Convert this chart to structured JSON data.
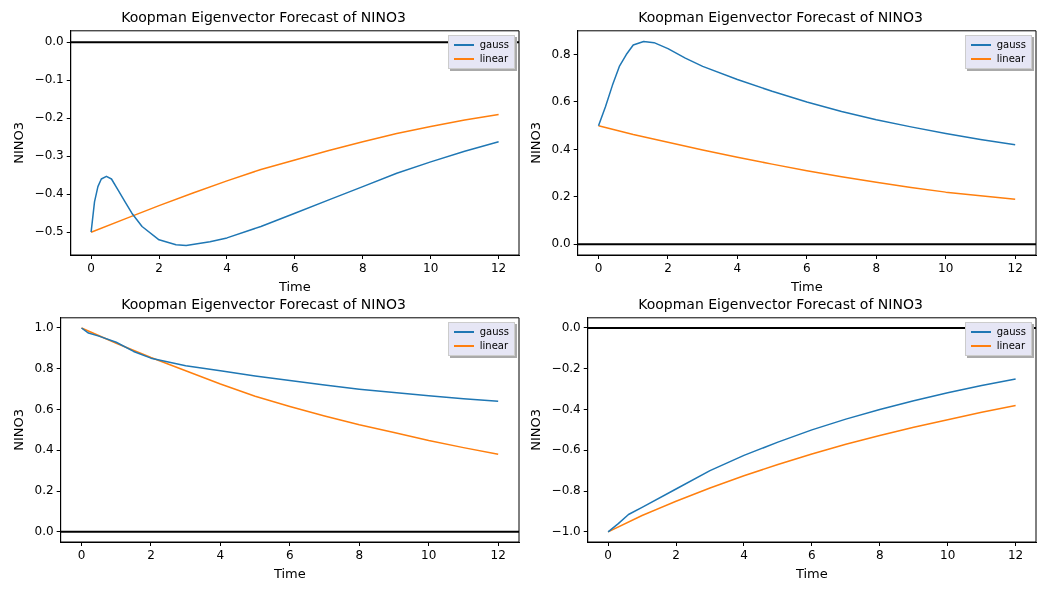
{
  "chart_data": [
    {
      "type": "line",
      "title": "Koopman Eigenvector Forecast of NINO3",
      "xlabel": "Time",
      "ylabel": "NINO3",
      "legend": "top right",
      "grid": false,
      "xlim": [
        -0.6,
        12.6
      ],
      "ylim": [
        -0.56,
        0.03
      ],
      "xticks": [
        0,
        2,
        4,
        6,
        8,
        10,
        12
      ],
      "yticks": [
        {
          "value": 0,
          "label": "0.0"
        },
        {
          "value": -0.1,
          "label": "−0.1"
        },
        {
          "value": -0.2,
          "label": "−0.2"
        },
        {
          "value": -0.3,
          "label": "−0.3"
        },
        {
          "value": -0.4,
          "label": "−0.4"
        },
        {
          "value": -0.5,
          "label": "−0.5"
        }
      ],
      "ref_lines": [
        {
          "axis": "y",
          "value": 0,
          "color": "#000000"
        }
      ],
      "series": [
        {
          "name": "gauss",
          "color": "#1f77b4",
          "x": [
            0,
            0.1,
            0.2,
            0.3,
            0.45,
            0.6,
            0.8,
            1,
            1.2,
            1.5,
            2,
            2.5,
            2.8,
            3.5,
            4,
            5,
            6,
            7,
            8,
            9,
            10,
            11,
            12
          ],
          "values": [
            -0.5,
            -0.42,
            -0.38,
            -0.36,
            -0.353,
            -0.36,
            -0.39,
            -0.42,
            -0.45,
            -0.485,
            -0.52,
            -0.533,
            -0.535,
            -0.525,
            -0.515,
            -0.485,
            -0.45,
            -0.415,
            -0.38,
            -0.345,
            -0.315,
            -0.287,
            -0.262
          ]
        },
        {
          "name": "linear",
          "color": "#ff7f0e",
          "x": [
            0,
            1,
            2,
            3,
            4,
            5,
            6,
            7,
            8,
            9,
            10,
            11,
            12
          ],
          "values": [
            -0.5,
            -0.465,
            -0.43,
            -0.397,
            -0.365,
            -0.335,
            -0.31,
            -0.285,
            -0.262,
            -0.24,
            -0.222,
            -0.205,
            -0.19
          ]
        }
      ]
    },
    {
      "type": "line",
      "title": "Koopman Eigenvector Forecast of NINO3",
      "xlabel": "Time",
      "ylabel": "NINO3",
      "legend": "top right",
      "grid": false,
      "xlim": [
        -0.6,
        12.6
      ],
      "ylim": [
        -0.045,
        0.9
      ],
      "xticks": [
        0,
        2,
        4,
        6,
        8,
        10,
        12
      ],
      "yticks": [
        {
          "value": 0,
          "label": "0.0"
        },
        {
          "value": 0.2,
          "label": "0.2"
        },
        {
          "value": 0.4,
          "label": "0.4"
        },
        {
          "value": 0.6,
          "label": "0.6"
        },
        {
          "value": 0.8,
          "label": "0.8"
        }
      ],
      "ref_lines": [
        {
          "axis": "y",
          "value": 0,
          "color": "#000000"
        }
      ],
      "series": [
        {
          "name": "gauss",
          "color": "#1f77b4",
          "x": [
            0,
            0.2,
            0.4,
            0.6,
            0.8,
            1,
            1.3,
            1.6,
            2,
            2.5,
            3,
            4,
            5,
            6,
            7,
            8,
            9,
            10,
            11,
            12
          ],
          "values": [
            0.5,
            0.58,
            0.67,
            0.75,
            0.8,
            0.84,
            0.855,
            0.85,
            0.825,
            0.785,
            0.75,
            0.695,
            0.645,
            0.6,
            0.56,
            0.525,
            0.495,
            0.467,
            0.442,
            0.42
          ]
        },
        {
          "name": "linear",
          "color": "#ff7f0e",
          "x": [
            0,
            1,
            2,
            3,
            4,
            5,
            6,
            7,
            8,
            9,
            10,
            11,
            12
          ],
          "values": [
            0.5,
            0.463,
            0.43,
            0.398,
            0.367,
            0.338,
            0.31,
            0.285,
            0.262,
            0.24,
            0.22,
            0.205,
            0.19
          ]
        }
      ]
    },
    {
      "type": "line",
      "title": "Koopman Eigenvector Forecast of NINO3",
      "xlabel": "Time",
      "ylabel": "NINO3",
      "legend": "top right",
      "grid": false,
      "xlim": [
        -0.6,
        12.6
      ],
      "ylim": [
        -0.05,
        1.05
      ],
      "xticks": [
        0,
        2,
        4,
        6,
        8,
        10,
        12
      ],
      "yticks": [
        {
          "value": 0,
          "label": "0.0"
        },
        {
          "value": 0.2,
          "label": "0.2"
        },
        {
          "value": 0.4,
          "label": "0.4"
        },
        {
          "value": 0.6,
          "label": "0.6"
        },
        {
          "value": 0.8,
          "label": "0.8"
        },
        {
          "value": 1,
          "label": "1.0"
        }
      ],
      "ref_lines": [
        {
          "axis": "y",
          "value": 0,
          "color": "#000000"
        }
      ],
      "series": [
        {
          "name": "gauss",
          "color": "#1f77b4",
          "x": [
            0,
            0.2,
            0.5,
            1,
            1.5,
            2,
            3,
            4,
            5,
            6,
            7,
            8,
            9,
            10,
            11,
            12
          ],
          "values": [
            1.0,
            0.975,
            0.96,
            0.93,
            0.885,
            0.852,
            0.815,
            0.79,
            0.765,
            0.742,
            0.72,
            0.7,
            0.683,
            0.668,
            0.653,
            0.64
          ]
        },
        {
          "name": "linear",
          "color": "#ff7f0e",
          "x": [
            0,
            1,
            2,
            3,
            4,
            5,
            6,
            7,
            8,
            9,
            10,
            11,
            12
          ],
          "values": [
            1.0,
            0.925,
            0.855,
            0.79,
            0.725,
            0.665,
            0.615,
            0.568,
            0.525,
            0.487,
            0.448,
            0.413,
            0.38
          ]
        }
      ]
    },
    {
      "type": "line",
      "title": "Koopman Eigenvector Forecast of NINO3",
      "xlabel": "Time",
      "ylabel": "NINO3",
      "legend": "top right",
      "grid": false,
      "xlim": [
        -0.6,
        12.6
      ],
      "ylim": [
        -1.05,
        0.05
      ],
      "xticks": [
        0,
        2,
        4,
        6,
        8,
        10,
        12
      ],
      "yticks": [
        {
          "value": 0,
          "label": "0.0"
        },
        {
          "value": -0.2,
          "label": "−0.2"
        },
        {
          "value": -0.4,
          "label": "−0.4"
        },
        {
          "value": -0.6,
          "label": "−0.6"
        },
        {
          "value": -0.8,
          "label": "−0.8"
        },
        {
          "value": -1,
          "label": "−1.0"
        }
      ],
      "ref_lines": [
        {
          "axis": "y",
          "value": 0,
          "color": "#000000"
        }
      ],
      "series": [
        {
          "name": "gauss",
          "color": "#1f77b4",
          "x": [
            0,
            0.3,
            0.6,
            1,
            2,
            3,
            4,
            5,
            6,
            7,
            8,
            9,
            10,
            11,
            12
          ],
          "values": [
            -1.0,
            -0.96,
            -0.915,
            -0.88,
            -0.79,
            -0.7,
            -0.625,
            -0.56,
            -0.5,
            -0.447,
            -0.4,
            -0.357,
            -0.318,
            -0.282,
            -0.25
          ]
        },
        {
          "name": "linear",
          "color": "#ff7f0e",
          "x": [
            0,
            1,
            2,
            3,
            4,
            5,
            6,
            7,
            8,
            9,
            10,
            11,
            12
          ],
          "values": [
            -1.0,
            -0.92,
            -0.85,
            -0.785,
            -0.725,
            -0.67,
            -0.618,
            -0.57,
            -0.527,
            -0.487,
            -0.45,
            -0.413,
            -0.38
          ]
        }
      ]
    }
  ]
}
